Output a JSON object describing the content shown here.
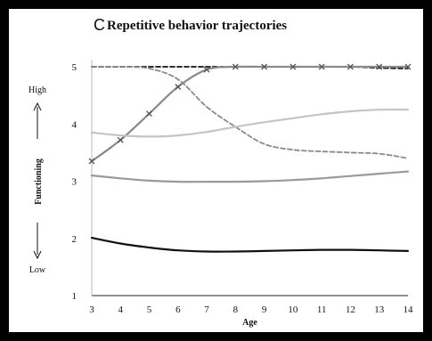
{
  "chart_data": {
    "type": "line",
    "panel_letter": "C",
    "title": "Repetitive behavior trajectories",
    "xlabel": "Age",
    "ylabel": "Functioning",
    "y_high_label": "High",
    "y_low_label": "Low",
    "x": [
      3,
      4,
      5,
      6,
      7,
      8,
      9,
      10,
      11,
      12,
      13,
      14
    ],
    "xlim": [
      3,
      14
    ],
    "ylim": [
      1,
      5
    ],
    "yticks": [
      1,
      2,
      3,
      4,
      5
    ],
    "grid": false,
    "legend": "none",
    "series": [
      {
        "style": "dashed",
        "color": "#111111",
        "width": 1.8,
        "values": [
          5.0,
          5.0,
          5.0,
          5.0,
          5.0,
          5.0,
          5.0,
          5.0,
          5.0,
          5.0,
          4.98,
          4.97
        ]
      },
      {
        "style": "dashed",
        "color": "#8a8a8a",
        "width": 1.8,
        "values": [
          5.0,
          5.0,
          4.97,
          4.78,
          4.3,
          3.95,
          3.65,
          3.55,
          3.52,
          3.5,
          3.48,
          3.4
        ]
      },
      {
        "style": "solid-x-markers",
        "color": "#8a8a8a",
        "width": 2.2,
        "values": [
          3.35,
          3.72,
          4.18,
          4.65,
          4.95,
          5.0,
          5.0,
          5.0,
          5.0,
          5.0,
          5.0,
          5.0
        ]
      },
      {
        "style": "solid",
        "color": "#c4c4c4",
        "width": 2.2,
        "values": [
          3.85,
          3.8,
          3.78,
          3.8,
          3.86,
          3.95,
          4.03,
          4.1,
          4.17,
          4.22,
          4.25,
          4.25
        ]
      },
      {
        "style": "solid",
        "color": "#9a9a9a",
        "width": 2.2,
        "values": [
          3.1,
          3.05,
          3.01,
          2.99,
          2.99,
          2.99,
          3.0,
          3.02,
          3.05,
          3.09,
          3.13,
          3.17
        ]
      },
      {
        "style": "solid",
        "color": "#111111",
        "width": 2.2,
        "values": [
          2.01,
          1.91,
          1.84,
          1.79,
          1.77,
          1.77,
          1.78,
          1.79,
          1.8,
          1.8,
          1.79,
          1.78
        ]
      }
    ]
  }
}
